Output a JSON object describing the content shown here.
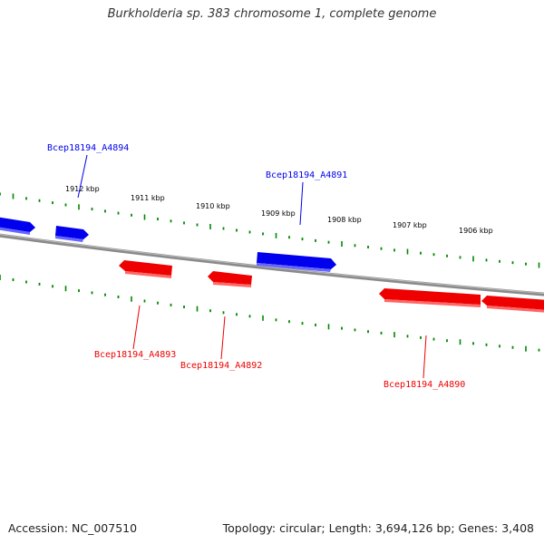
{
  "title": "Burkholderia sp. 383 chromosome 1, complete genome",
  "footer": {
    "accession": "Accession: NC_007510",
    "summary": "Topology: circular; Length: 3,694,126 bp; Genes: 3,408"
  },
  "colors": {
    "forward_gene": "#0000ee",
    "reverse_gene": "#ee0000",
    "backbone": "#888888",
    "ticks": "#008800",
    "tick_label": "#000000"
  },
  "scale_labels": [
    "1912 kbp",
    "1911 kbp",
    "1910 kbp",
    "1909 kbp",
    "1908 kbp",
    "1907 kbp",
    "1906 kbp"
  ],
  "genes": [
    {
      "name": "",
      "strand": "forward"
    },
    {
      "name": "Bcep18194_A4894",
      "strand": "forward"
    },
    {
      "name": "Bcep18194_A4891",
      "strand": "forward"
    },
    {
      "name": "Bcep18194_A4893",
      "strand": "reverse"
    },
    {
      "name": "Bcep18194_A4892",
      "strand": "reverse"
    },
    {
      "name": "Bcep18194_A4890",
      "strand": "reverse"
    },
    {
      "name": "",
      "strand": "reverse"
    }
  ]
}
